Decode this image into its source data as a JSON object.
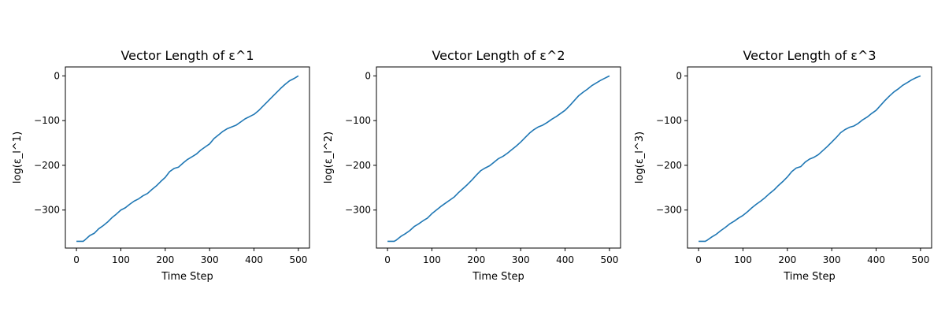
{
  "chart_data": [
    {
      "type": "line",
      "title": "Vector Length of ε^1",
      "xlabel": "Time Step",
      "ylabel": "log(ε_l^1)",
      "xlim": [
        -25,
        525
      ],
      "ylim": [
        -385,
        20
      ],
      "xticks": [
        0,
        100,
        200,
        300,
        400,
        500
      ],
      "yticks": [
        0,
        -100,
        -200,
        -300
      ],
      "series": [
        {
          "color": "#1f77b4",
          "x": [
            0,
            15,
            20,
            30,
            40,
            50,
            60,
            70,
            80,
            90,
            100,
            110,
            120,
            130,
            140,
            150,
            160,
            170,
            180,
            190,
            200,
            210,
            220,
            230,
            240,
            250,
            260,
            270,
            280,
            290,
            300,
            310,
            320,
            330,
            340,
            350,
            360,
            370,
            380,
            390,
            400,
            410,
            420,
            430,
            440,
            450,
            460,
            470,
            480,
            490,
            495,
            500
          ],
          "y": [
            -370,
            -370,
            -366,
            -357,
            -352,
            -342,
            -335,
            -327,
            -317,
            -309,
            -300,
            -295,
            -287,
            -280,
            -275,
            -268,
            -263,
            -254,
            -246,
            -236,
            -227,
            -214,
            -207,
            -204,
            -195,
            -187,
            -181,
            -175,
            -166,
            -159,
            -152,
            -140,
            -132,
            -124,
            -118,
            -114,
            -110,
            -103,
            -96,
            -91,
            -86,
            -78,
            -68,
            -58,
            -48,
            -38,
            -28,
            -19,
            -11,
            -6,
            -3,
            0
          ]
        }
      ]
    },
    {
      "type": "line",
      "title": "Vector Length of ε^2",
      "xlabel": "Time Step",
      "ylabel": "log(ε_l^2)",
      "xlim": [
        -25,
        525
      ],
      "ylim": [
        -385,
        20
      ],
      "xticks": [
        0,
        100,
        200,
        300,
        400,
        500
      ],
      "yticks": [
        0,
        -100,
        -200,
        -300
      ],
      "series": [
        {
          "color": "#1f77b4",
          "x": [
            0,
            15,
            20,
            30,
            40,
            50,
            60,
            70,
            80,
            90,
            100,
            110,
            120,
            130,
            140,
            150,
            160,
            170,
            180,
            190,
            200,
            210,
            220,
            230,
            240,
            250,
            260,
            270,
            280,
            290,
            300,
            310,
            320,
            330,
            340,
            350,
            360,
            370,
            380,
            390,
            400,
            410,
            420,
            430,
            440,
            450,
            460,
            470,
            480,
            490,
            500
          ],
          "y": [
            -370,
            -370,
            -367,
            -359,
            -353,
            -346,
            -337,
            -331,
            -324,
            -318,
            -308,
            -300,
            -292,
            -285,
            -278,
            -271,
            -261,
            -252,
            -243,
            -233,
            -222,
            -212,
            -206,
            -201,
            -193,
            -185,
            -180,
            -173,
            -165,
            -157,
            -148,
            -138,
            -128,
            -120,
            -114,
            -110,
            -104,
            -97,
            -91,
            -84,
            -77,
            -67,
            -56,
            -45,
            -37,
            -30,
            -22,
            -16,
            -10,
            -5,
            0
          ]
        }
      ]
    },
    {
      "type": "line",
      "title": "Vector Length of ε^3",
      "xlabel": "Time Step",
      "ylabel": "log(ε_l^3)",
      "xlim": [
        -25,
        525
      ],
      "ylim": [
        -385,
        20
      ],
      "xticks": [
        0,
        100,
        200,
        300,
        400,
        500
      ],
      "yticks": [
        0,
        -100,
        -200,
        -300
      ],
      "series": [
        {
          "color": "#1f77b4",
          "x": [
            0,
            15,
            20,
            30,
            40,
            50,
            60,
            70,
            80,
            90,
            100,
            110,
            120,
            130,
            140,
            150,
            160,
            170,
            180,
            190,
            200,
            210,
            220,
            230,
            240,
            250,
            260,
            270,
            280,
            290,
            300,
            310,
            320,
            330,
            340,
            350,
            360,
            370,
            380,
            390,
            400,
            410,
            420,
            430,
            440,
            450,
            460,
            470,
            480,
            490,
            500
          ],
          "y": [
            -370,
            -370,
            -367,
            -360,
            -354,
            -346,
            -339,
            -331,
            -325,
            -318,
            -312,
            -304,
            -295,
            -287,
            -280,
            -272,
            -263,
            -255,
            -245,
            -236,
            -226,
            -214,
            -206,
            -203,
            -193,
            -186,
            -182,
            -176,
            -167,
            -158,
            -148,
            -138,
            -127,
            -120,
            -115,
            -112,
            -106,
            -98,
            -92,
            -84,
            -77,
            -66,
            -55,
            -45,
            -36,
            -29,
            -21,
            -15,
            -9,
            -4,
            0
          ]
        }
      ]
    }
  ]
}
